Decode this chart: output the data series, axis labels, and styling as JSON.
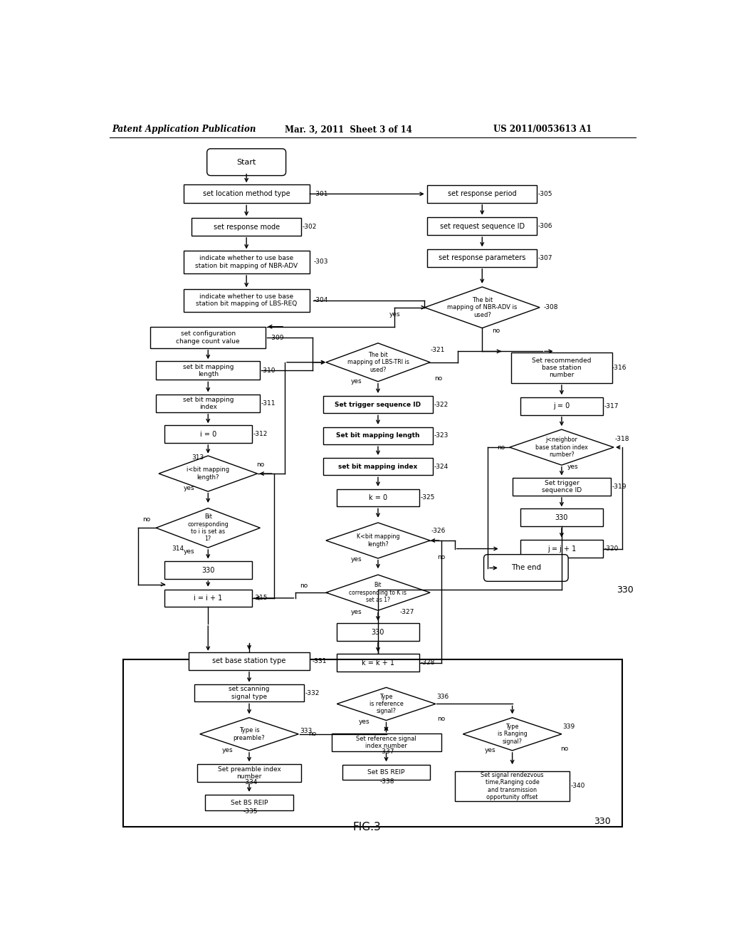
{
  "title_left": "Patent Application Publication",
  "title_mid": "Mar. 3, 2011  Sheet 3 of 14",
  "title_right": "US 2011/0053613 A1",
  "fig_label": "FIG.3",
  "background": "#ffffff",
  "line_color": "#000000",
  "text_color": "#000000"
}
